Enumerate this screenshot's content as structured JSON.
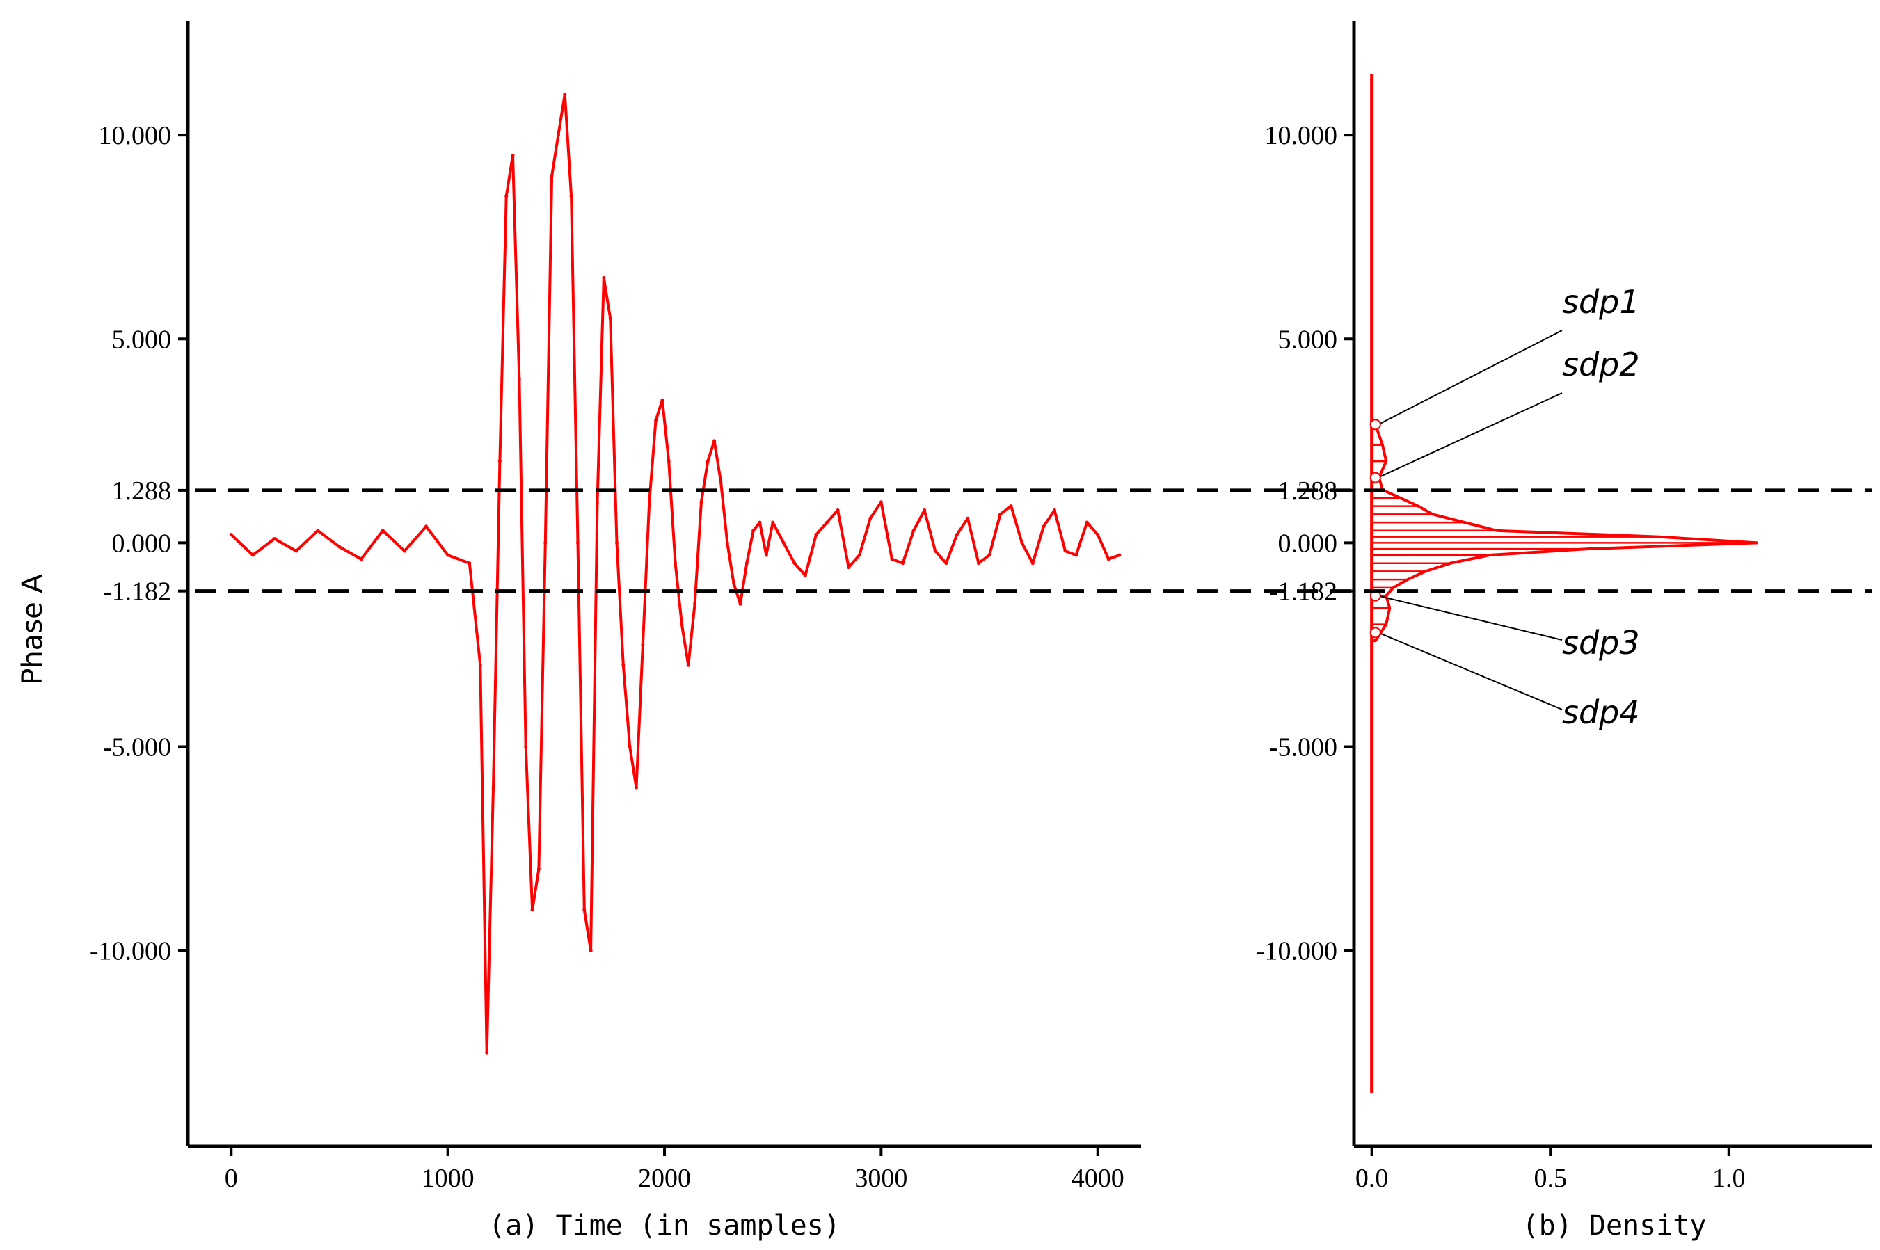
{
  "colors": {
    "series": "#ff0000",
    "axis": "#000000",
    "threshold": "#000000"
  },
  "chart_data": [
    {
      "type": "line",
      "panel": "a",
      "xlabel": "(a) Time (in samples)",
      "ylabel": "Phase A",
      "xlim": [
        -200,
        4200
      ],
      "ylim": [
        -14.8,
        12.8
      ],
      "xticks": [
        0,
        1000,
        2000,
        3000,
        4000
      ],
      "xtick_labels": [
        "0",
        "1000",
        "2000",
        "3000",
        "4000"
      ],
      "yticks": [
        10,
        5,
        1.288,
        0,
        -1.182,
        -5,
        -10
      ],
      "ytick_labels": [
        "10.000",
        "5.000",
        "1.288",
        "0.000",
        "-1.182",
        "-5.000",
        "-10.000"
      ],
      "thresholds": [
        1.288,
        -1.182
      ],
      "grid": false,
      "series": [
        {
          "x": [
            0,
            100,
            200,
            300,
            400,
            500,
            600,
            700,
            800,
            900,
            1000,
            1100,
            1150,
            1180,
            1210,
            1240,
            1270,
            1300,
            1330,
            1360,
            1390,
            1420,
            1450,
            1480,
            1510,
            1540,
            1570,
            1600,
            1630,
            1660,
            1690,
            1720,
            1750,
            1780,
            1810,
            1840,
            1870,
            1900,
            1930,
            1960,
            1990,
            2020,
            2050,
            2080,
            2110,
            2140,
            2170,
            2200,
            2230,
            2260,
            2290,
            2320,
            2350,
            2380,
            2410,
            2440,
            2470,
            2500,
            2550,
            2600,
            2650,
            2700,
            2750,
            2800,
            2850,
            2900,
            2950,
            3000,
            3050,
            3100,
            3150,
            3200,
            3250,
            3300,
            3350,
            3400,
            3450,
            3500,
            3550,
            3600,
            3650,
            3700,
            3750,
            3800,
            3850,
            3900,
            3950,
            4000,
            4050,
            4100
          ],
          "y": [
            0.2,
            -0.3,
            0.1,
            -0.2,
            0.3,
            -0.1,
            -0.4,
            0.3,
            -0.2,
            0.4,
            -0.3,
            -0.5,
            -3.0,
            -12.5,
            -6.0,
            2.0,
            8.5,
            9.5,
            4.0,
            -5.0,
            -9.0,
            -8.0,
            0.0,
            9.0,
            10.0,
            11.0,
            8.5,
            0.0,
            -9.0,
            -10.0,
            1.0,
            6.5,
            5.5,
            0.0,
            -3.0,
            -5.0,
            -6.0,
            -2.5,
            1.0,
            3.0,
            3.5,
            2.0,
            -0.5,
            -2.0,
            -3.0,
            -1.5,
            1.0,
            2.0,
            2.5,
            1.5,
            0.0,
            -1.0,
            -1.5,
            -0.5,
            0.3,
            0.5,
            -0.3,
            0.5,
            0.0,
            -0.5,
            -0.8,
            0.2,
            0.5,
            0.8,
            -0.6,
            -0.3,
            0.6,
            1.0,
            -0.4,
            -0.5,
            0.3,
            0.8,
            -0.2,
            -0.5,
            0.2,
            0.6,
            -0.5,
            -0.3,
            0.7,
            0.9,
            0.0,
            -0.5,
            0.4,
            0.8,
            -0.2,
            -0.3,
            0.5,
            0.2,
            -0.4,
            -0.3
          ]
        }
      ]
    },
    {
      "type": "bar",
      "panel": "b",
      "orientation": "horizontal",
      "xlabel": "(b) Density",
      "xlim": [
        -0.05,
        1.4
      ],
      "ylim": [
        -14.8,
        12.8
      ],
      "xticks": [
        0,
        0.5,
        1.0
      ],
      "xtick_labels": [
        "0.0",
        "0.5",
        "1.0"
      ],
      "yticks": [
        10,
        5,
        1.288,
        0,
        -1.182,
        -5,
        -10
      ],
      "ytick_labels": [
        "10.000",
        "5.000",
        "1.288",
        "0.000",
        "-1.182",
        "-5.000",
        "-10.000"
      ],
      "thresholds": [
        1.288,
        -1.182
      ],
      "bins_y": [
        2.9,
        2.4,
        2.0,
        1.6,
        1.3,
        1.1,
        0.9,
        0.7,
        0.5,
        0.3,
        0.15,
        0.0,
        -0.15,
        -0.3,
        -0.5,
        -0.7,
        -0.9,
        -1.1,
        -1.3,
        -1.6,
        -2.0,
        -2.4
      ],
      "density": [
        0.01,
        0.03,
        0.04,
        0.02,
        0.03,
        0.08,
        0.13,
        0.17,
        0.26,
        0.35,
        0.8,
        1.08,
        0.6,
        0.33,
        0.22,
        0.15,
        0.1,
        0.06,
        0.04,
        0.05,
        0.04,
        0.01
      ],
      "annotations": [
        {
          "label": "sdp1",
          "value": 2.9
        },
        {
          "label": "sdp2",
          "value": 1.6
        },
        {
          "label": "sdp3",
          "value": -1.3
        },
        {
          "label": "sdp4",
          "value": -2.2
        }
      ]
    }
  ]
}
